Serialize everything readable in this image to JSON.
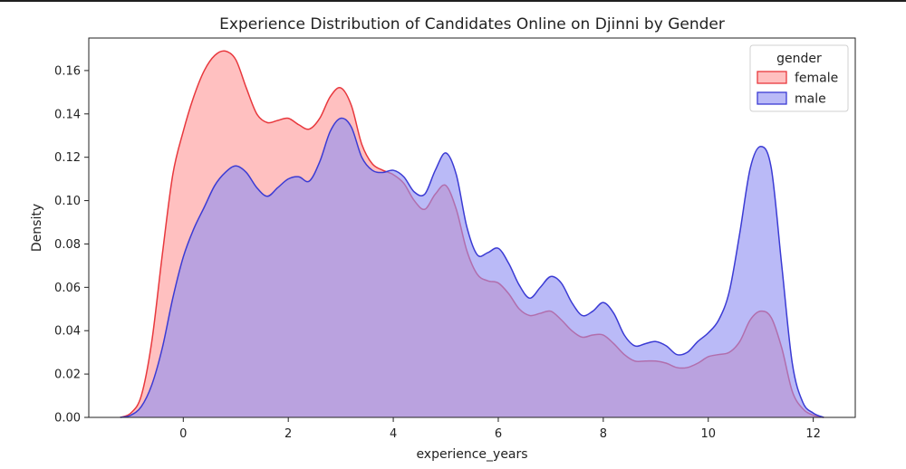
{
  "chart_data": {
    "type": "area",
    "title": "Experience Distribution of Candidates Online on Djinni by Gender",
    "xlabel": "experience_years",
    "ylabel": "Density",
    "xlim": [
      -1.8,
      12.8
    ],
    "ylim": [
      0,
      0.175
    ],
    "xticks": [
      0,
      2,
      4,
      6,
      8,
      10,
      12
    ],
    "xtick_labels": [
      "0",
      "2",
      "4",
      "6",
      "8",
      "10",
      "12"
    ],
    "yticks": [
      0,
      0.02,
      0.04,
      0.06,
      0.08,
      0.1,
      0.12,
      0.14,
      0.16
    ],
    "ytick_labels": [
      "0.00",
      "0.02",
      "0.04",
      "0.06",
      "0.08",
      "0.10",
      "0.12",
      "0.14",
      "0.16"
    ],
    "grid": false,
    "legend": {
      "title": "gender",
      "placement": "top-right"
    },
    "series": [
      {
        "name": "female",
        "color": "#e8383d",
        "fill": "#ff9a9a",
        "x": [
          -1.2,
          -1.0,
          -0.8,
          -0.6,
          -0.4,
          -0.2,
          0.0,
          0.2,
          0.4,
          0.6,
          0.8,
          1.0,
          1.2,
          1.4,
          1.6,
          1.8,
          2.0,
          2.2,
          2.4,
          2.6,
          2.8,
          3.0,
          3.2,
          3.4,
          3.6,
          3.8,
          4.0,
          4.2,
          4.4,
          4.6,
          4.8,
          5.0,
          5.2,
          5.4,
          5.6,
          5.8,
          6.0,
          6.2,
          6.4,
          6.6,
          6.8,
          7.0,
          7.2,
          7.4,
          7.6,
          7.8,
          8.0,
          8.2,
          8.4,
          8.6,
          8.8,
          9.0,
          9.2,
          9.4,
          9.6,
          9.8,
          10.0,
          10.2,
          10.4,
          10.6,
          10.8,
          11.0,
          11.2,
          11.4,
          11.6,
          11.8,
          12.0,
          12.2
        ],
        "y": [
          0.0,
          0.002,
          0.01,
          0.035,
          0.075,
          0.112,
          0.132,
          0.148,
          0.16,
          0.167,
          0.169,
          0.165,
          0.152,
          0.14,
          0.136,
          0.137,
          0.138,
          0.135,
          0.133,
          0.138,
          0.148,
          0.152,
          0.144,
          0.126,
          0.117,
          0.114,
          0.112,
          0.108,
          0.1,
          0.096,
          0.103,
          0.107,
          0.096,
          0.077,
          0.066,
          0.063,
          0.062,
          0.057,
          0.05,
          0.047,
          0.048,
          0.049,
          0.045,
          0.04,
          0.037,
          0.038,
          0.038,
          0.034,
          0.029,
          0.026,
          0.026,
          0.026,
          0.025,
          0.023,
          0.023,
          0.025,
          0.028,
          0.029,
          0.03,
          0.035,
          0.045,
          0.049,
          0.046,
          0.032,
          0.012,
          0.004,
          0.001,
          0.0
        ]
      },
      {
        "name": "male",
        "color": "#3b3bd4",
        "fill": "#8f8ff2",
        "x": [
          -1.2,
          -1.0,
          -0.8,
          -0.6,
          -0.4,
          -0.2,
          0.0,
          0.2,
          0.4,
          0.6,
          0.8,
          1.0,
          1.2,
          1.4,
          1.6,
          1.8,
          2.0,
          2.2,
          2.4,
          2.6,
          2.8,
          3.0,
          3.2,
          3.4,
          3.6,
          3.8,
          4.0,
          4.2,
          4.4,
          4.6,
          4.8,
          5.0,
          5.2,
          5.4,
          5.6,
          5.8,
          6.0,
          6.2,
          6.4,
          6.6,
          6.8,
          7.0,
          7.2,
          7.4,
          7.6,
          7.8,
          8.0,
          8.2,
          8.4,
          8.6,
          8.8,
          9.0,
          9.2,
          9.4,
          9.6,
          9.8,
          10.0,
          10.2,
          10.4,
          10.6,
          10.8,
          11.0,
          11.2,
          11.4,
          11.6,
          11.8,
          12.0,
          12.2
        ],
        "y": [
          0.0,
          0.001,
          0.005,
          0.015,
          0.032,
          0.055,
          0.074,
          0.087,
          0.097,
          0.107,
          0.113,
          0.116,
          0.113,
          0.106,
          0.102,
          0.106,
          0.11,
          0.111,
          0.109,
          0.118,
          0.132,
          0.138,
          0.134,
          0.12,
          0.114,
          0.113,
          0.114,
          0.111,
          0.104,
          0.103,
          0.114,
          0.122,
          0.112,
          0.088,
          0.075,
          0.076,
          0.078,
          0.071,
          0.061,
          0.055,
          0.06,
          0.065,
          0.062,
          0.053,
          0.047,
          0.049,
          0.053,
          0.048,
          0.038,
          0.033,
          0.034,
          0.035,
          0.033,
          0.029,
          0.03,
          0.035,
          0.039,
          0.045,
          0.058,
          0.085,
          0.115,
          0.125,
          0.115,
          0.07,
          0.025,
          0.007,
          0.002,
          0.0
        ]
      }
    ]
  }
}
